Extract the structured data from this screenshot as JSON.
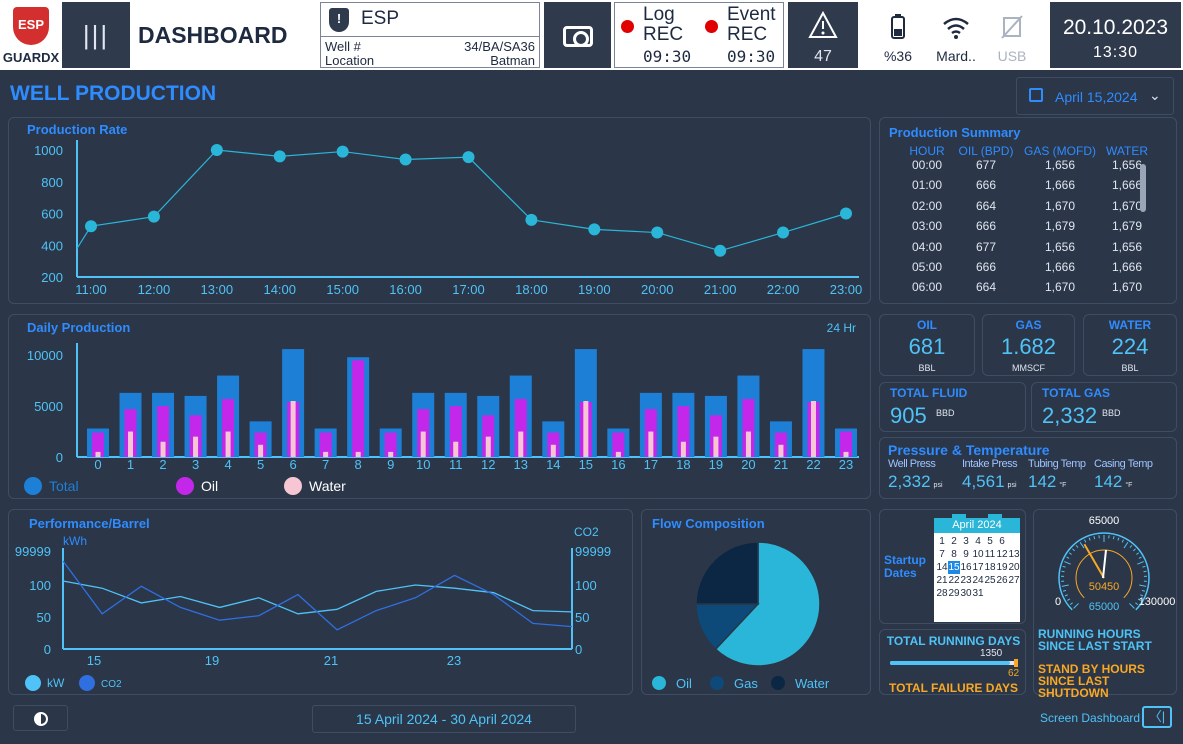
{
  "header": {
    "logo_badge": "ESP",
    "logo_text": "GUARDX",
    "menu_icon": "|||",
    "dashboard_label": "DASHBOARD",
    "system_name": "ESP",
    "well_label": "Well #",
    "well_value": "34/BA/SA36",
    "location_label": "Location",
    "location_value": "Batman",
    "log_label": "Log",
    "event_label": "Event",
    "rec_label": "REC",
    "log_time": "09:30",
    "event_time": "09:30",
    "alarm_count": "47",
    "battery_label": "%36",
    "wifi_label": "Mard..",
    "usb_label": "USB",
    "date": "20.10.2023",
    "time": "13:30"
  },
  "page": {
    "title": "WELL PRODUCTION",
    "date_selector": "April 15,2024",
    "date_range": "15 April 2024 - 30 April 2024",
    "screen_dashboard": "Screen Dashboard"
  },
  "production_rate": {
    "title": "Production Rate",
    "chart_data": {
      "type": "line",
      "x": [
        "11:00",
        "12:00",
        "13:00",
        "14:00",
        "15:00",
        "16:00",
        "17:00",
        "18:00",
        "19:00",
        "20:00",
        "21:00",
        "22:00",
        "23:00"
      ],
      "values": [
        520,
        580,
        1000,
        960,
        990,
        940,
        955,
        560,
        500,
        480,
        365,
        480,
        600
      ],
      "start_value": 380,
      "yticks": [
        1000,
        800,
        600,
        400,
        200
      ],
      "ylim": [
        200,
        1000
      ]
    }
  },
  "daily_production": {
    "title": "Daily Production",
    "period": "24 Hr",
    "chart_data": {
      "type": "bar",
      "categories": [
        "0",
        "1",
        "2",
        "3",
        "4",
        "5",
        "6",
        "7",
        "8",
        "9",
        "10",
        "11",
        "12",
        "13",
        "14",
        "15",
        "16",
        "17",
        "18",
        "19",
        "20",
        "21",
        "22",
        "23"
      ],
      "series": [
        {
          "name": "Total",
          "values": [
            2800,
            6300,
            6300,
            6000,
            8000,
            3500,
            10600,
            2800,
            9800,
            2800,
            6300,
            6300,
            6000,
            8000,
            3500,
            10600,
            2800,
            6300,
            6300,
            6000,
            8000,
            3500,
            10600,
            2800
          ]
        },
        {
          "name": "Oil",
          "values": [
            2400,
            4700,
            5000,
            4100,
            5700,
            2400,
            5400,
            2400,
            9500,
            2400,
            4700,
            5000,
            4100,
            5700,
            2400,
            5400,
            2400,
            4700,
            5000,
            4100,
            5700,
            2400,
            5400,
            2500
          ]
        },
        {
          "name": "Water",
          "values": [
            500,
            2500,
            1500,
            2000,
            2500,
            1200,
            5500,
            500,
            500,
            500,
            2500,
            1500,
            2000,
            2500,
            1200,
            5500,
            500,
            2500,
            1500,
            2000,
            2500,
            1200,
            5500,
            500
          ]
        }
      ],
      "yticks": [
        10000,
        5000,
        0
      ],
      "ylim": [
        0,
        11000
      ]
    },
    "legend": [
      "Total",
      "Oil",
      "Water"
    ]
  },
  "performance": {
    "title": "Performance/Barrel",
    "left_unit": "kWh",
    "right_unit": "CO2",
    "left_ticks": [
      "99999",
      "100",
      "50",
      "0"
    ],
    "right_ticks": [
      "99999",
      "100",
      "50",
      "0"
    ],
    "xticks": [
      "15",
      "19",
      "21",
      "23"
    ],
    "legend_kw": "kW",
    "legend_co2": "CO2",
    "chart_data": {
      "type": "line",
      "series": [
        {
          "name": "kW",
          "values": [
            105,
            95,
            72,
            82,
            65,
            80,
            55,
            62,
            90,
            100,
            95,
            88,
            60,
            58
          ]
        },
        {
          "name": "CO2",
          "values": [
            130,
            55,
            98,
            65,
            45,
            52,
            85,
            30,
            60,
            80,
            112,
            85,
            40,
            35
          ]
        }
      ]
    }
  },
  "flow_composition": {
    "title": "Flow Composition",
    "chart_data": {
      "type": "pie",
      "slices": [
        {
          "name": "Oil",
          "value": 62,
          "color": "#29b6d8"
        },
        {
          "name": "Gas",
          "value": 13,
          "color": "#0d4a7a"
        },
        {
          "name": "Water",
          "value": 25,
          "color": "#0b2744"
        }
      ]
    },
    "legend": [
      "Oil",
      "Gas",
      "Water"
    ]
  },
  "summary": {
    "title": "Production Summary",
    "columns": [
      "HOUR",
      "OIL (BPD)",
      "GAS (MOFD)",
      "WATER"
    ],
    "rows": [
      [
        "00:00",
        "677",
        "1,656",
        "1,656"
      ],
      [
        "01:00",
        "666",
        "1,666",
        "1,666"
      ],
      [
        "02:00",
        "664",
        "1,670",
        "1,670"
      ],
      [
        "03:00",
        "666",
        "1,679",
        "1,679"
      ],
      [
        "04:00",
        "677",
        "1,656",
        "1,656"
      ],
      [
        "05:00",
        "666",
        "1,666",
        "1,666"
      ],
      [
        "06:00",
        "664",
        "1,670",
        "1,670"
      ]
    ]
  },
  "kpis": {
    "oil_title": "OIL",
    "oil_value": "681",
    "oil_unit": "BBL",
    "gas_title": "GAS",
    "gas_value": "1.682",
    "gas_unit": "MMSCF",
    "water_title": "WATER",
    "water_value": "224",
    "water_unit": "BBL",
    "fluid_title": "TOTAL FLUID",
    "fluid_value": "905",
    "fluid_unit": "BBD",
    "tgas_title": "TOTAL GAS",
    "tgas_value": "2,332",
    "tgas_unit": "BBD"
  },
  "pressure": {
    "title": "Pressure & Temperature",
    "items": [
      {
        "label": "Well Press",
        "value": "2,332",
        "unit": "psi"
      },
      {
        "label": "Intake Press",
        "value": "4,561",
        "unit": "psi"
      },
      {
        "label": "Tubing Temp",
        "value": "142",
        "unit": "°F"
      },
      {
        "label": "Casing Temp",
        "value": "142",
        "unit": "°F"
      }
    ]
  },
  "startup": {
    "label_1": "Startup",
    "label_2": "Dates",
    "calendar_title": "April 2024",
    "selected_day": 15
  },
  "running": {
    "title": "TOTAL RUNNING DAYS",
    "running_days": "1350",
    "failure_days": "62",
    "failure_title": "TOTAL FAILURE DAYS",
    "progress_fraction": 0.95
  },
  "gauge": {
    "max_top": "65000",
    "min": "0",
    "max": "130000",
    "value": "50450",
    "secondary": "65000",
    "value_numeric": 50450,
    "range_max": 130000,
    "running_label": "RUNNING HOURS SINCE LAST START",
    "standby_label": "STAND BY HOURS SINCE LAST SHUTDOWN"
  }
}
